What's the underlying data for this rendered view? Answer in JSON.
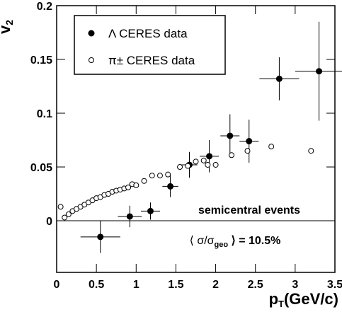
{
  "chart_data": {
    "type": "scatter",
    "y_label": {
      "main": "v",
      "sub": "2"
    },
    "x_label": {
      "main": "p",
      "sub": "T",
      "rest": "(GeV/c)"
    },
    "annotations": [
      {
        "text": "semicentral events"
      },
      {
        "pre": "⟨ σ/σ",
        "sub": "geo",
        "post": " ⟩ = 10.5%"
      }
    ],
    "xlim": [
      0,
      3.5
    ],
    "xticks": [
      0,
      0.5,
      1,
      1.5,
      2,
      2.5,
      3,
      3.5
    ],
    "ylim": [
      -0.048,
      0.2
    ],
    "yticks": [
      0,
      0.05,
      0.1,
      0.15,
      0.2
    ],
    "legend": "top-left",
    "series": [
      {
        "name": "Λ CERES data",
        "marker": "filled",
        "color": "#000000",
        "x": [
          0.55,
          0.92,
          1.18,
          1.43,
          1.67,
          1.92,
          2.18,
          2.42,
          2.8,
          3.3
        ],
        "values": [
          -0.015,
          0.004,
          0.009,
          0.032,
          0.052,
          0.06,
          0.079,
          0.074,
          0.132,
          0.139
        ],
        "xerr": [
          0.25,
          0.15,
          0.12,
          0.1,
          0.1,
          0.12,
          0.12,
          0.12,
          0.25,
          0.3
        ],
        "yerr": [
          0.015,
          0.01,
          0.008,
          0.01,
          0.012,
          0.015,
          0.02,
          0.02,
          0.02,
          0.046
        ]
      },
      {
        "name": "π± CERES data",
        "marker": "open",
        "color": "#000000",
        "x": [
          0.05,
          0.1,
          0.15,
          0.2,
          0.25,
          0.3,
          0.35,
          0.4,
          0.45,
          0.5,
          0.55,
          0.6,
          0.65,
          0.7,
          0.75,
          0.8,
          0.85,
          0.9,
          0.95,
          1.0,
          1.1,
          1.2,
          1.3,
          1.4,
          1.55,
          1.65,
          1.75,
          1.85,
          1.9,
          2.0,
          2.2,
          2.4,
          2.7,
          3.2
        ],
        "values": [
          0.013,
          0.003,
          0.006,
          0.009,
          0.011,
          0.013,
          0.015,
          0.017,
          0.019,
          0.021,
          0.022,
          0.024,
          0.025,
          0.027,
          0.028,
          0.029,
          0.03,
          0.031,
          0.034,
          0.033,
          0.037,
          0.042,
          0.042,
          0.043,
          0.05,
          0.051,
          0.055,
          0.056,
          0.052,
          0.052,
          0.061,
          0.065,
          0.069,
          0.065
        ]
      }
    ]
  }
}
